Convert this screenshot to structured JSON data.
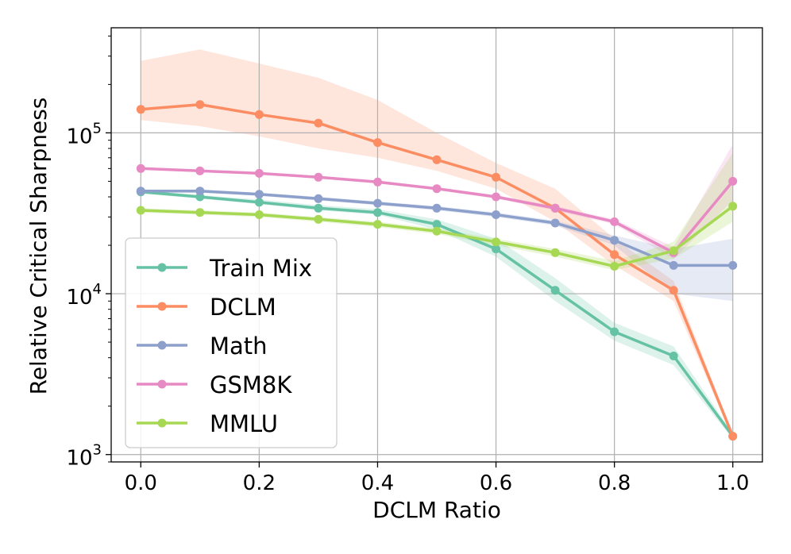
{
  "chart_data": {
    "type": "line",
    "xlabel": "DCLM Ratio",
    "ylabel": "Relative Critical Sharpness",
    "yscale": "log",
    "xlim": [
      -0.05,
      1.05
    ],
    "ylim": [
      900,
      450000
    ],
    "grid": true,
    "legend_position": "lower-left",
    "x_ticks": [
      {
        "value": 0.0,
        "label": "0.0"
      },
      {
        "value": 0.2,
        "label": "0.2"
      },
      {
        "value": 0.4,
        "label": "0.4"
      },
      {
        "value": 0.6,
        "label": "0.6"
      },
      {
        "value": 0.8,
        "label": "0.8"
      },
      {
        "value": 1.0,
        "label": "1.0"
      }
    ],
    "y_ticks": [
      {
        "value": 1000,
        "base": "10",
        "exp": "3"
      },
      {
        "value": 10000,
        "base": "10",
        "exp": "4"
      },
      {
        "value": 100000,
        "base": "10",
        "exp": "5"
      }
    ],
    "x": [
      0.0,
      0.1,
      0.2,
      0.3,
      0.4,
      0.5,
      0.6,
      0.7,
      0.8,
      0.9,
      1.0
    ],
    "series": [
      {
        "name": "Train Mix",
        "color": "#66c2a5",
        "values": [
          43000,
          40000,
          37000,
          34000,
          32000,
          27000,
          19000,
          10500,
          5800,
          4100,
          1300
        ],
        "lower": [
          42000,
          39000,
          36000,
          33000,
          31000,
          25000,
          17000,
          9000,
          5100,
          3600,
          1250
        ],
        "upper": [
          44000,
          41000,
          38500,
          35500,
          33500,
          29000,
          22000,
          12500,
          6600,
          4700,
          1350
        ]
      },
      {
        "name": "DCLM",
        "color": "#fc8d62",
        "values": [
          140000,
          150000,
          130000,
          115000,
          87000,
          68000,
          53000,
          34000,
          17500,
          10500,
          1300
        ],
        "lower": [
          120000,
          110000,
          95000,
          80000,
          70000,
          58000,
          45000,
          28000,
          15000,
          9000,
          1250
        ],
        "upper": [
          280000,
          330000,
          270000,
          220000,
          160000,
          100000,
          65000,
          45000,
          22000,
          12000,
          1350
        ]
      },
      {
        "name": "Math",
        "color": "#8da0cb",
        "values": [
          43500,
          43500,
          41500,
          39000,
          36500,
          34000,
          31000,
          27500,
          21500,
          15000,
          15000
        ],
        "lower": [
          42500,
          42500,
          40500,
          38000,
          35500,
          33000,
          30000,
          26500,
          20000,
          10000,
          9000
        ],
        "upper": [
          44500,
          44500,
          42500,
          40000,
          37500,
          35000,
          32000,
          28500,
          23000,
          19000,
          22000
        ]
      },
      {
        "name": "GSM8K",
        "color": "#e78ac3",
        "values": [
          60000,
          58000,
          56000,
          53000,
          49500,
          45000,
          40000,
          34000,
          28000,
          18000,
          50000
        ],
        "lower": [
          59000,
          57000,
          55000,
          52000,
          48500,
          44000,
          39000,
          33000,
          27000,
          16500,
          38000
        ],
        "upper": [
          61000,
          59000,
          57000,
          54000,
          50500,
          46000,
          41000,
          35000,
          29000,
          19500,
          85000
        ]
      },
      {
        "name": "MMLU",
        "color": "#a6d854",
        "values": [
          33000,
          32000,
          31000,
          29000,
          27000,
          24500,
          21000,
          18000,
          14800,
          18500,
          35000
        ],
        "lower": [
          32000,
          31000,
          30000,
          28000,
          26000,
          23500,
          20000,
          17000,
          14000,
          16500,
          28000
        ],
        "upper": [
          34000,
          33000,
          32000,
          30000,
          28000,
          25500,
          22000,
          19000,
          16000,
          21000,
          75000
        ]
      }
    ]
  }
}
